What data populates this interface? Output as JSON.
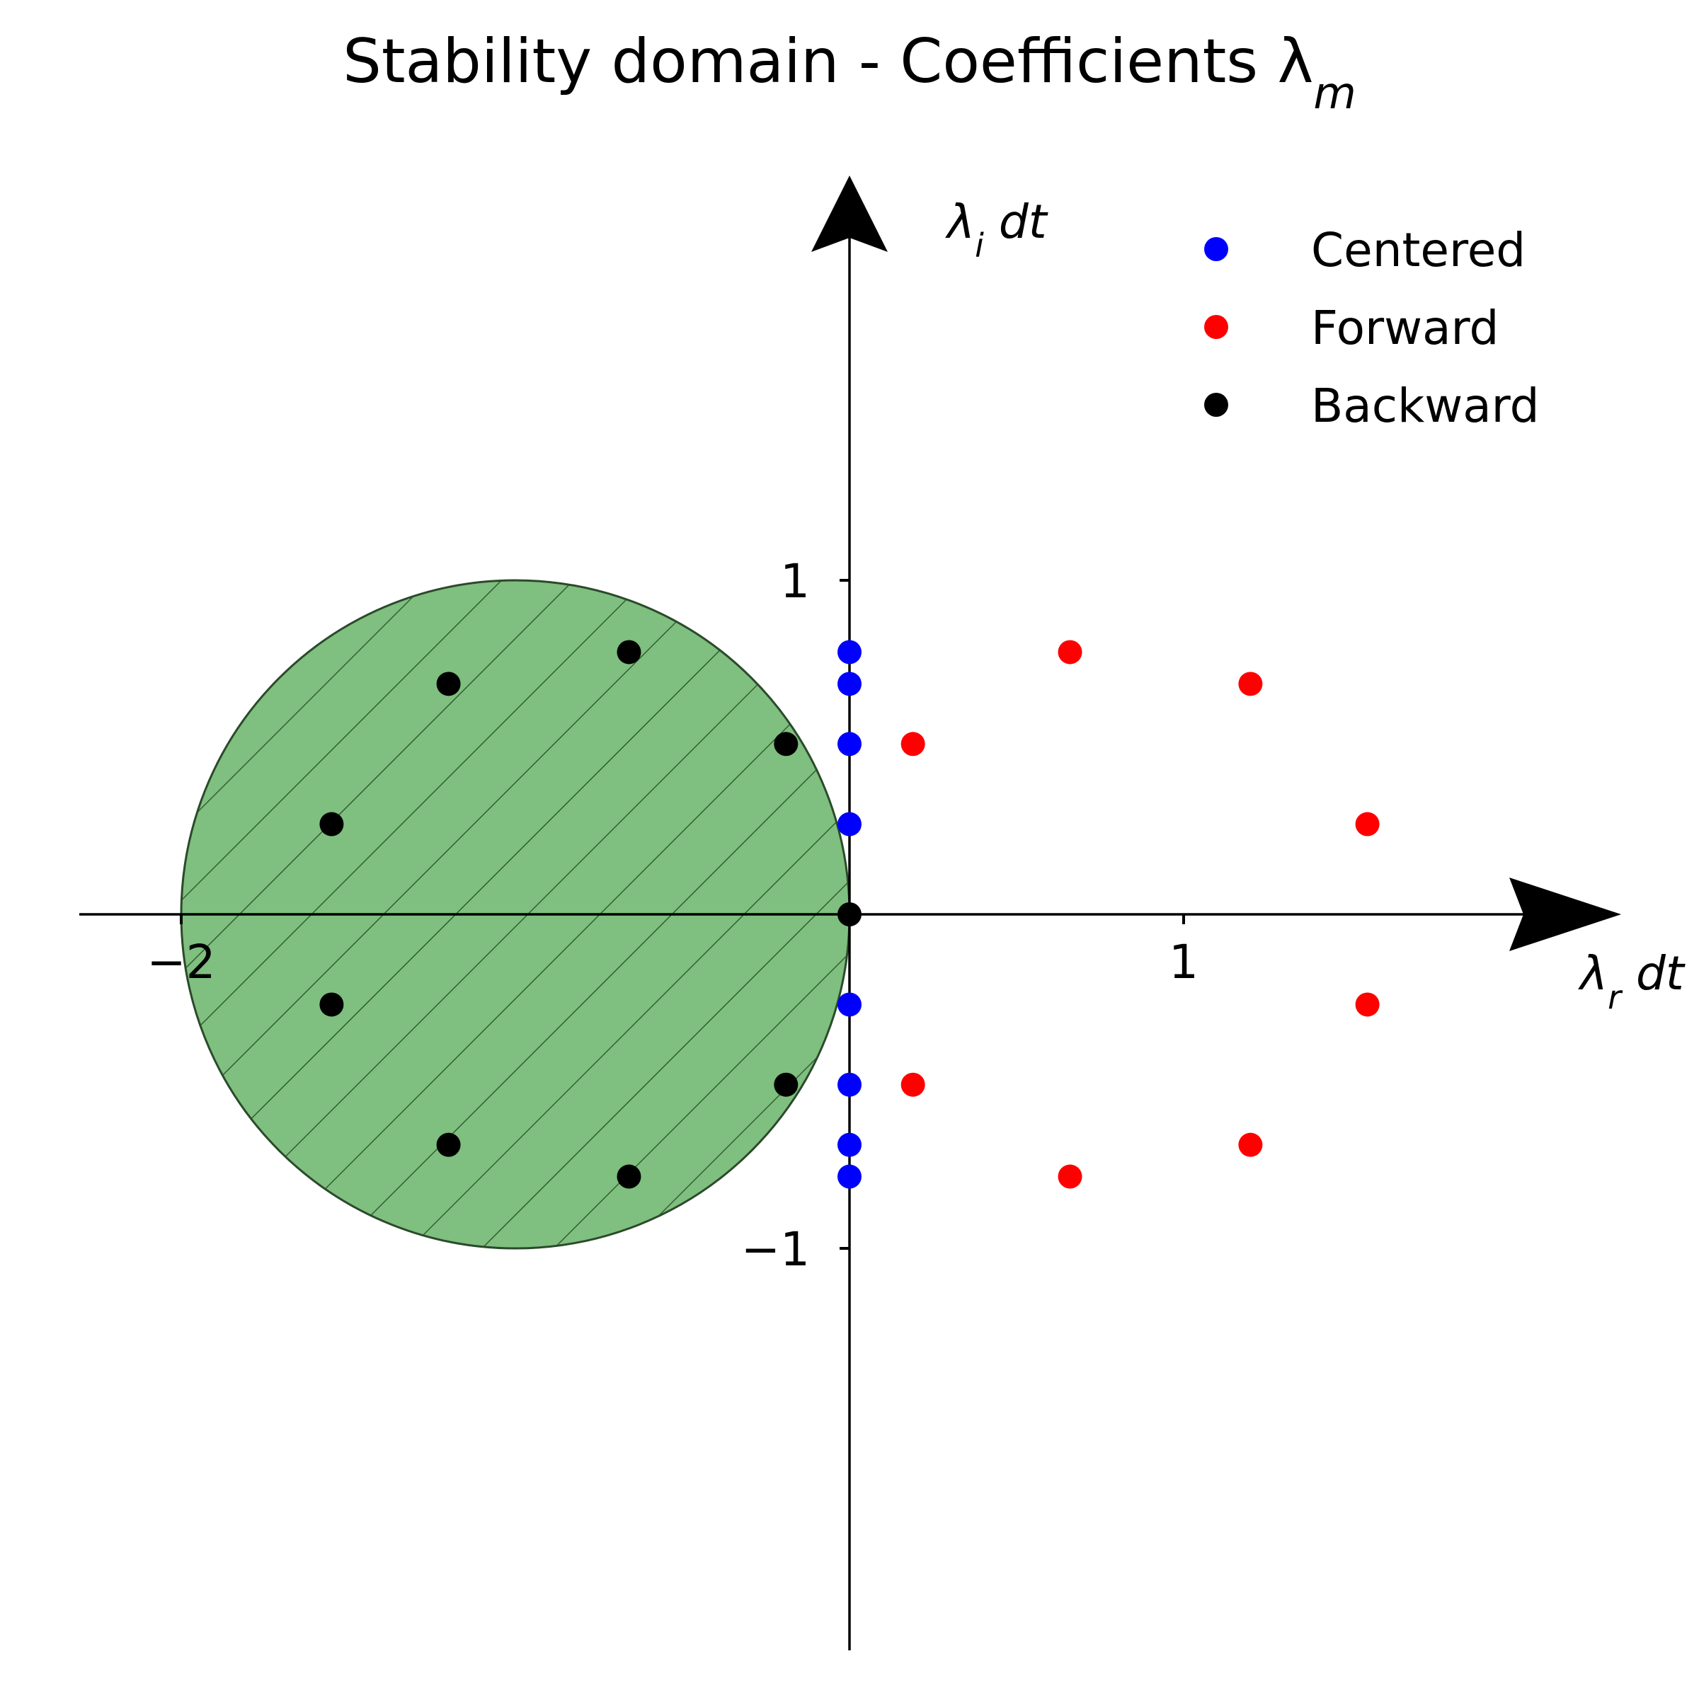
{
  "chart_data": {
    "type": "scatter",
    "title": "Stability domain - Coefficients λ",
    "title_subscript": "m",
    "xlabel": "λ",
    "xlabel_subscript": "r",
    "xlabel_suffix": " dt",
    "ylabel": "λ",
    "ylabel_subscript": "i",
    "ylabel_suffix": " dt",
    "xlim": [
      -2.3,
      2.3
    ],
    "ylim": [
      -2.2,
      2.2
    ],
    "x_ticks": [
      {
        "value": -2,
        "label": "−2"
      },
      {
        "value": 1,
        "label": "1"
      }
    ],
    "y_ticks": [
      {
        "value": 1,
        "label": "1"
      },
      {
        "value": -1,
        "label": "−1"
      }
    ],
    "grid": false,
    "legend_position": "top-right",
    "stability_region": {
      "shape": "circle",
      "center": [
        -1,
        0
      ],
      "radius": 1,
      "fill": "#008000",
      "fill_opacity": 0.5,
      "hatch": "diagonal"
    },
    "series": [
      {
        "name": "Centered",
        "color": "#0000ff",
        "points": [
          [
            0,
            0.785
          ],
          [
            0,
            0.69
          ],
          [
            0,
            0.51
          ],
          [
            0,
            0.27
          ],
          [
            0,
            -0.27
          ],
          [
            0,
            -0.51
          ],
          [
            0,
            -0.69
          ],
          [
            0,
            -0.785
          ]
        ]
      },
      {
        "name": "Forward",
        "color": "#ff0000",
        "points": [
          [
            0.66,
            0.785
          ],
          [
            1.2,
            0.69
          ],
          [
            0.19,
            0.51
          ],
          [
            1.55,
            0.27
          ],
          [
            1.55,
            -0.27
          ],
          [
            0.19,
            -0.51
          ],
          [
            1.2,
            -0.69
          ],
          [
            0.66,
            -0.785
          ]
        ]
      },
      {
        "name": "Backward",
        "color": "#000000",
        "points": [
          [
            -0.66,
            0.785
          ],
          [
            -1.2,
            0.69
          ],
          [
            -0.19,
            0.51
          ],
          [
            -1.55,
            0.27
          ],
          [
            0,
            0
          ],
          [
            -1.55,
            -0.27
          ],
          [
            -0.19,
            -0.51
          ],
          [
            -1.2,
            -0.69
          ],
          [
            -0.66,
            -0.785
          ]
        ]
      }
    ]
  }
}
